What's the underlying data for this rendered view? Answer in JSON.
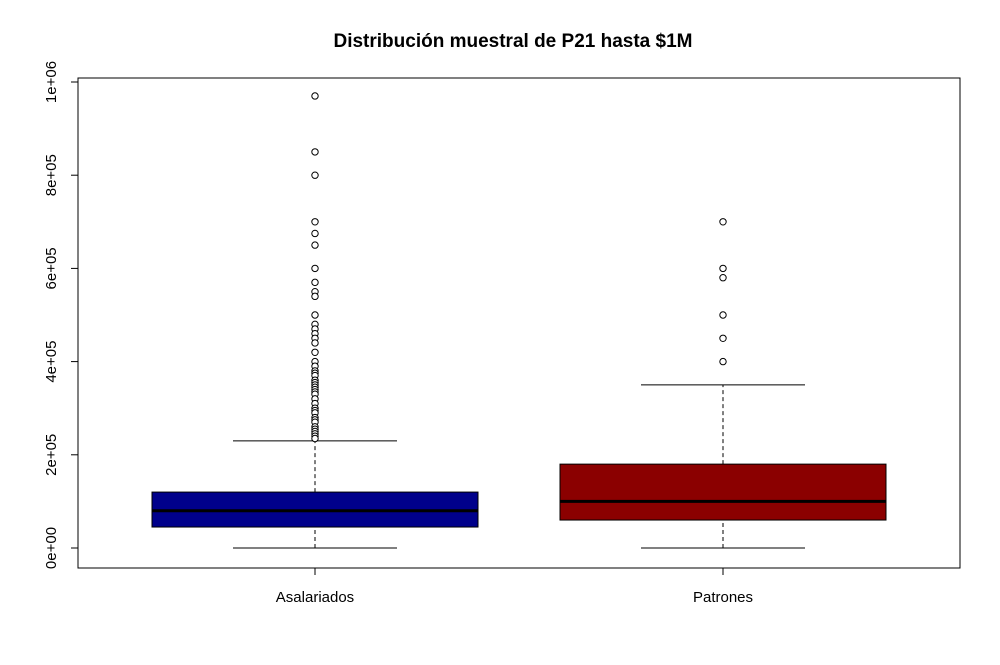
{
  "chart_data": {
    "type": "boxplot",
    "title": "Distribución muestral de P21 hasta $1M",
    "xlabel": "",
    "ylabel": "",
    "ylim": [
      -40000,
      1020000
    ],
    "yticks": [
      0,
      200000,
      400000,
      600000,
      800000,
      1000000
    ],
    "ytick_labels": [
      "0e+00",
      "2e+05",
      "4e+05",
      "6e+05",
      "8e+05",
      "1e+06"
    ],
    "categories": [
      "Asalariados",
      "Patrones"
    ],
    "grid": false,
    "series": [
      {
        "color": "#00008B",
        "whisker_low": 0,
        "q1": 45000,
        "median": 80000,
        "q3": 120000,
        "whisker_high": 230000,
        "outliers": [
          970000,
          850000,
          800000,
          700000,
          675000,
          650000,
          600000,
          570000,
          550000,
          540000,
          500000,
          480000,
          470000,
          460000,
          450000,
          440000,
          420000,
          400000,
          390000,
          380000,
          375000,
          370000,
          360000,
          355000,
          350000,
          345000,
          340000,
          335000,
          330000,
          320000,
          310000,
          300000,
          295000,
          290000,
          280000,
          275000,
          270000,
          260000,
          255000,
          250000,
          245000,
          240000,
          235000
        ]
      },
      {
        "color": "#8B0000",
        "whisker_low": 0,
        "q1": 60000,
        "median": 100000,
        "q3": 180000,
        "whisker_high": 350000,
        "outliers": [
          700000,
          600000,
          580000,
          500000,
          450000,
          400000
        ]
      }
    ]
  }
}
